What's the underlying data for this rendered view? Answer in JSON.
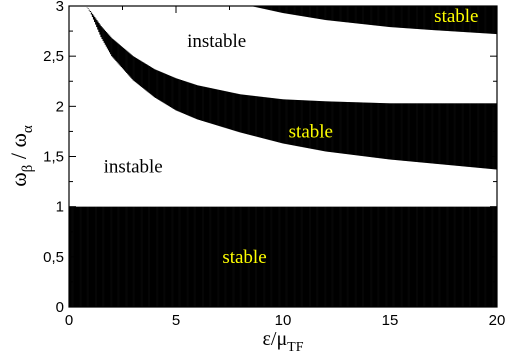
{
  "chart_data": {
    "type": "area",
    "title": "",
    "xlabel": {
      "main": "ε/μ",
      "sub": "TF"
    },
    "ylabel": {
      "a": "ω",
      "a_sub": "β",
      "sep": " / ",
      "b": "ω",
      "b_sub": "α"
    },
    "xlim": [
      0,
      20
    ],
    "ylim": [
      0,
      3
    ],
    "x_ticks": [
      0,
      5,
      10,
      15,
      20
    ],
    "x_tick_labels": [
      "0",
      "5",
      "10",
      "15",
      "20"
    ],
    "y_ticks": [
      0,
      0.5,
      1,
      1.5,
      2,
      2.5,
      3
    ],
    "y_tick_labels": [
      "0",
      "0,5",
      "1",
      "1,5",
      "2",
      "2,5",
      "3"
    ],
    "hatch_color": "#000000",
    "stable_label_color": "#ffff00",
    "instable_label_color": "#000000",
    "regions": [
      {
        "name": "bottom band",
        "label": "stable",
        "lower": {
          "x": [
            0,
            20
          ],
          "y": [
            0,
            0
          ]
        },
        "upper": {
          "x": [
            0,
            20
          ],
          "y": [
            1,
            1
          ]
        }
      },
      {
        "name": "middle band",
        "label": "stable",
        "lower": {
          "x": [
            0.8,
            1,
            1.5,
            2,
            3,
            4,
            5,
            6,
            8,
            10,
            12,
            15,
            20
          ],
          "y": [
            3.0,
            2.94,
            2.69,
            2.5,
            2.26,
            2.09,
            1.96,
            1.87,
            1.74,
            1.63,
            1.55,
            1.47,
            1.37
          ]
        },
        "upper": {
          "x": [
            0.8,
            1,
            1.5,
            2,
            3,
            4,
            5,
            6,
            8,
            10,
            12,
            15,
            20
          ],
          "y": [
            3.0,
            2.95,
            2.8,
            2.68,
            2.5,
            2.37,
            2.28,
            2.21,
            2.12,
            2.07,
            2.05,
            2.03,
            2.03
          ]
        }
      },
      {
        "name": "top band",
        "label": "stable",
        "lower": {
          "x": [
            8.5,
            10,
            12,
            15,
            17,
            20
          ],
          "y": [
            3.0,
            2.93,
            2.86,
            2.79,
            2.76,
            2.72
          ]
        },
        "upper": {
          "x": [
            8.5,
            20
          ],
          "y": [
            3,
            3
          ]
        }
      }
    ],
    "annotations": [
      {
        "text": "instable",
        "x": 6.9,
        "y": 2.65,
        "color": "instable"
      },
      {
        "text": "instable",
        "x": 3.0,
        "y": 1.4,
        "color": "instable"
      },
      {
        "text": "stable",
        "x": 18.1,
        "y": 2.9,
        "color": "stable"
      },
      {
        "text": "stable",
        "x": 11.3,
        "y": 1.75,
        "color": "stable"
      },
      {
        "text": "stable",
        "x": 8.2,
        "y": 0.5,
        "color": "stable"
      }
    ]
  }
}
